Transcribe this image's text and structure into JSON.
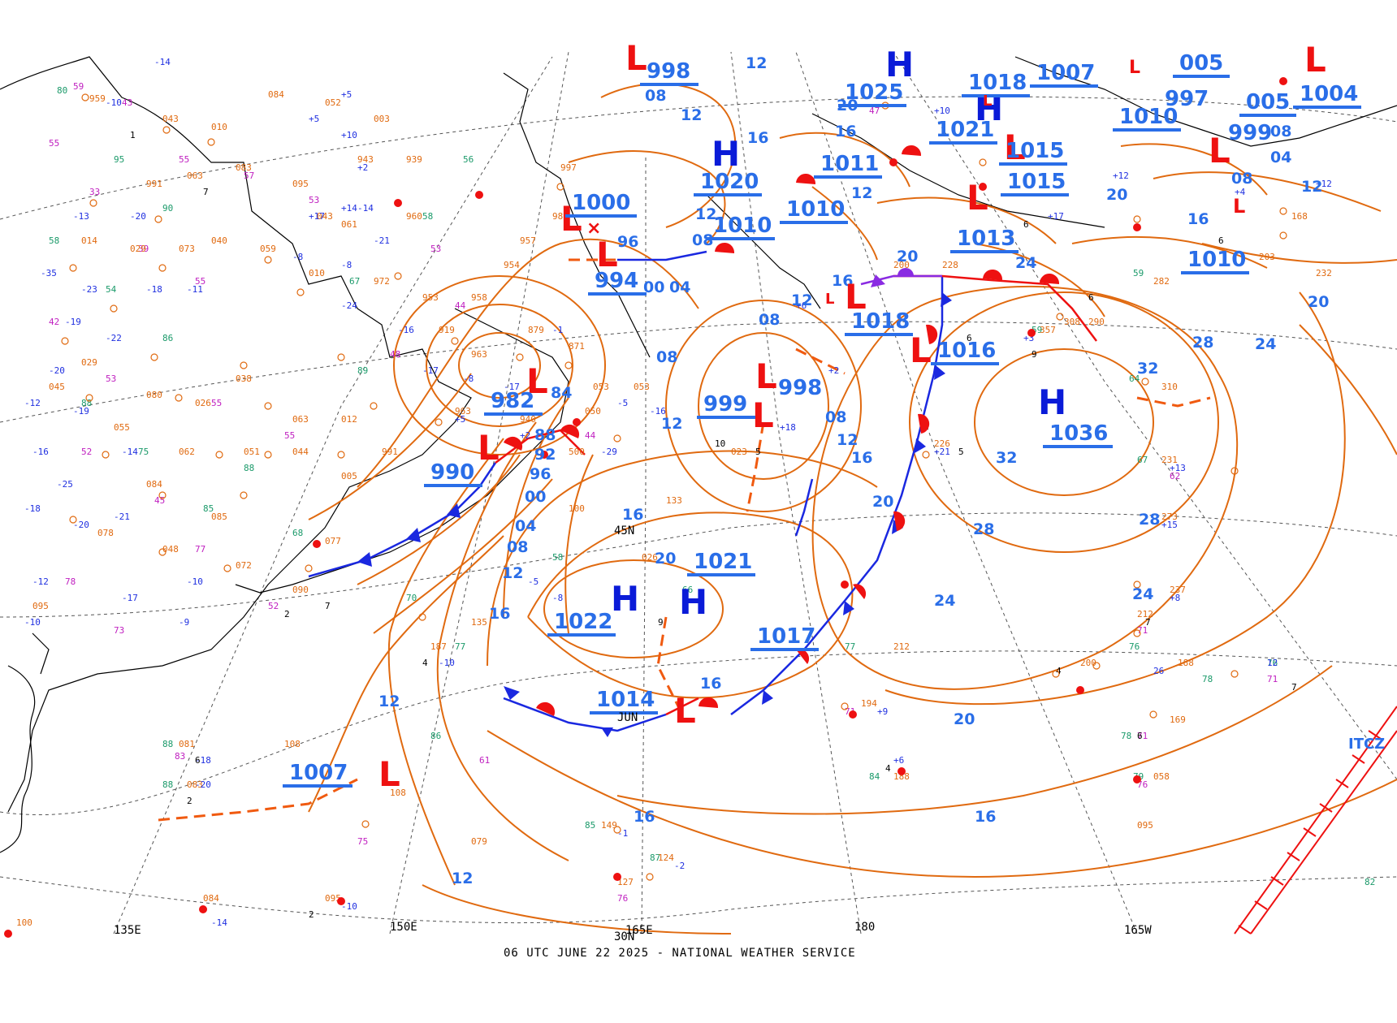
{
  "caption": "06 UTC JUNE 22 2025 - NATIONAL WEATHER SERVICE",
  "colors": {
    "isobar": "#e06a10",
    "high": "#0a1bd8",
    "low": "#ee1111",
    "label": "#2a6ee8",
    "cold_front": "#1a28e0",
    "warm_front": "#ee1111",
    "occluded_front": "#8a2be2",
    "trough": "#f05a10",
    "coast": "#000000",
    "grid": "#555555"
  },
  "longitude_labels": [
    "135E",
    "150E",
    "165E",
    "180",
    "165W"
  ],
  "latitude_labels": [
    "45N",
    "30N"
  ],
  "itcz_label": "ITCZ",
  "time_stamp_on_front": "JUN",
  "highs": [
    {
      "symbol": "H",
      "pressure": "1036"
    },
    {
      "symbol": "H",
      "pressure": "1020"
    },
    {
      "symbol": "H",
      "pressure": "1021"
    },
    {
      "symbol": "H",
      "pressure": "1022"
    },
    {
      "symbol": "H",
      "pressure": "1018"
    },
    {
      "symbol": "H",
      "pressure": "1025"
    }
  ],
  "lows": [
    {
      "symbol": "L",
      "pressure": "998"
    },
    {
      "symbol": "L",
      "pressure": "1000"
    },
    {
      "symbol": "L",
      "pressure": "994"
    },
    {
      "symbol": "L",
      "pressure": "982"
    },
    {
      "symbol": "L",
      "pressure": "990"
    },
    {
      "symbol": "L",
      "pressure": "999"
    },
    {
      "symbol": "L",
      "pressure": "998"
    },
    {
      "symbol": "L",
      "pressure": "1016"
    },
    {
      "symbol": "L",
      "pressure": "1018"
    },
    {
      "symbol": "L",
      "pressure": "1014"
    },
    {
      "symbol": "L",
      "pressure": "1007"
    },
    {
      "symbol": "L",
      "pressure": "1021"
    },
    {
      "symbol": "L",
      "pressure": "1015"
    },
    {
      "symbol": "L",
      "pressure": "999"
    },
    {
      "symbol": "L",
      "pressure": "1004"
    }
  ],
  "other_center_labels": [
    "1010",
    "1010",
    "1011",
    "1013",
    "1010",
    "1017",
    "1007",
    "1015",
    "1010",
    "005",
    "997",
    "005"
  ],
  "isobar_labels": [
    "00",
    "04",
    "08",
    "12",
    "16",
    "20",
    "24",
    "28",
    "32",
    "88",
    "92",
    "96",
    "00",
    "04",
    "08",
    "12",
    "16",
    "20",
    "24",
    "28",
    "32",
    "16",
    "12",
    "20"
  ]
}
